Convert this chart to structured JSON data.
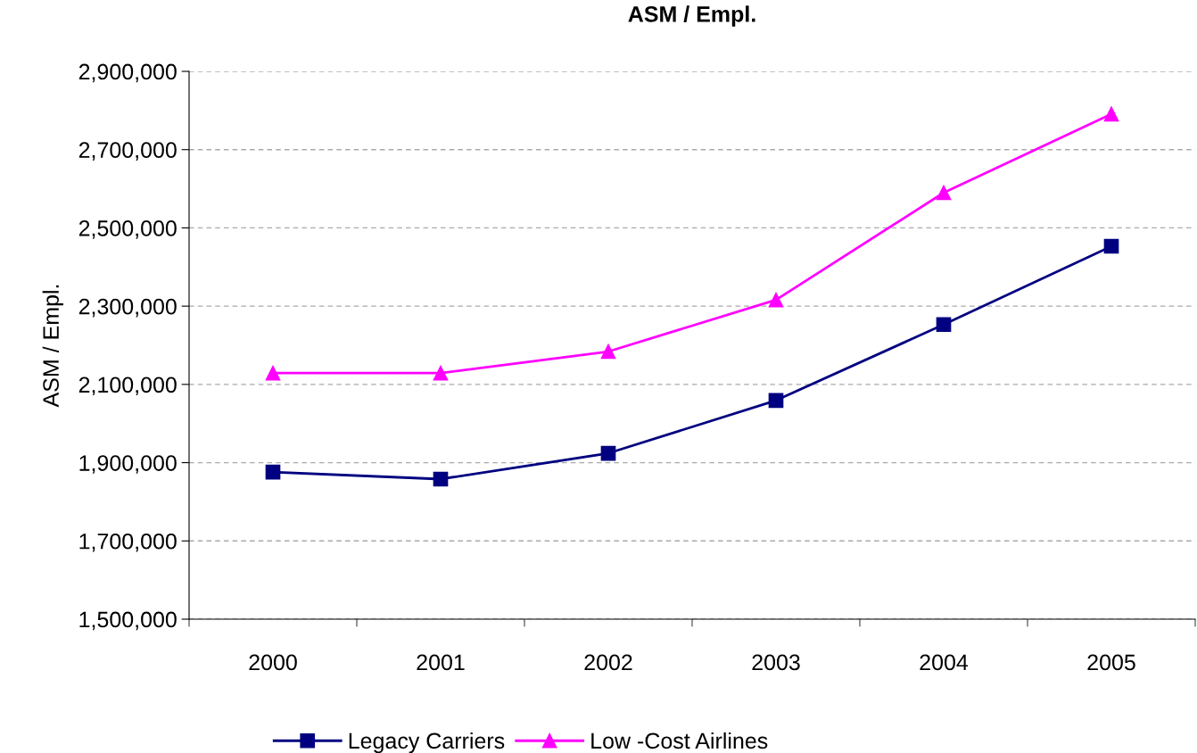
{
  "chart_data": {
    "type": "line",
    "title": "ASM / Empl.",
    "ylabel": "ASM / Empl.",
    "categories": [
      "2000",
      "2001",
      "2002",
      "2003",
      "2004",
      "2005"
    ],
    "series": [
      {
        "name": "Legacy Carriers",
        "color": "#000080",
        "marker": "square",
        "values": [
          1876000,
          1858000,
          1924000,
          2059000,
          2253000,
          2453000
        ]
      },
      {
        "name": "Low -Cost Airlines",
        "color": "#ff00ff",
        "marker": "triangle",
        "values": [
          2129000,
          2129000,
          2184000,
          2316000,
          2590000,
          2791000
        ]
      }
    ],
    "ylim": [
      1500000,
      2900000
    ],
    "yticks": [
      {
        "value": 1500000,
        "label": "1,500,000"
      },
      {
        "value": 1700000,
        "label": "1,700,000"
      },
      {
        "value": 1900000,
        "label": "1,900,000"
      },
      {
        "value": 2100000,
        "label": "2,100,000"
      },
      {
        "value": 2300000,
        "label": "2,300,000"
      },
      {
        "value": 2500000,
        "label": "2,500,000"
      },
      {
        "value": 2700000,
        "label": "2,700,000"
      },
      {
        "value": 2900000,
        "label": "2,900,000"
      }
    ],
    "grid": "y",
    "legend": "bottom",
    "line_style": "solid"
  }
}
